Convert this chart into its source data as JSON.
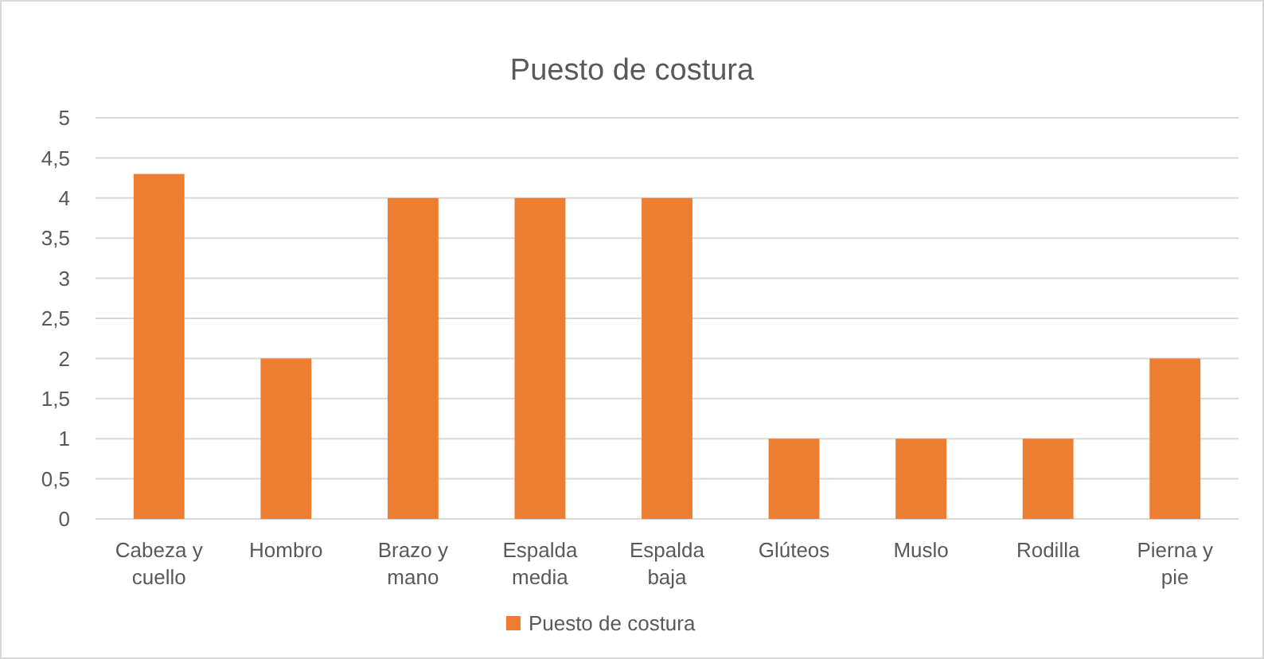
{
  "chart_data": {
    "type": "bar",
    "title": "Puesto de costura",
    "categories": [
      "Cabeza y cuello",
      "Hombro",
      "Brazo y mano",
      "Espalda media",
      "Espalda baja",
      "Glúteos",
      "Muslo",
      "Rodilla",
      "Pierna y pie"
    ],
    "series": [
      {
        "name": "Puesto de costura",
        "color": "#ed7d31",
        "values": [
          4.3,
          2,
          4,
          4,
          4,
          1,
          1,
          1,
          2
        ]
      }
    ],
    "ylim": [
      0,
      5
    ],
    "yticks": [
      0,
      {
        "value": 0.5,
        "label": "0,5"
      },
      1,
      {
        "value": 1.5,
        "label": "1,5"
      },
      2,
      {
        "value": 2.5,
        "label": "2,5"
      },
      3,
      {
        "value": 3.5,
        "label": "3,5"
      },
      4,
      {
        "value": 4.5,
        "label": "4,5"
      },
      5
    ],
    "grid": "y",
    "legend": "bottom"
  }
}
